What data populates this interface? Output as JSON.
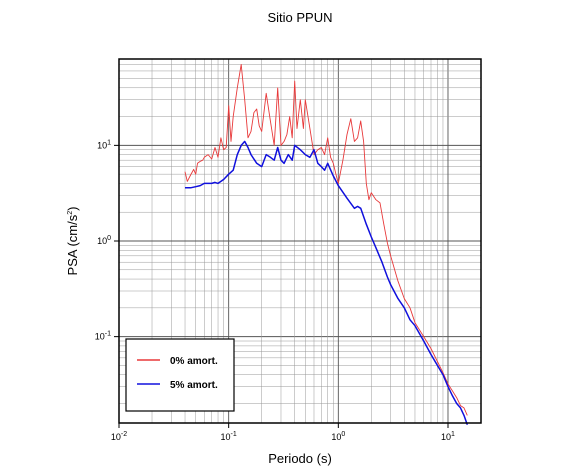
{
  "chart_data": {
    "type": "line",
    "title": "Sitio PPUN",
    "xlabel": "Periodo (s)",
    "ylabel_main": "PSA (cm/s",
    "ylabel_sup": "2",
    "ylabel_tail": ")",
    "x_scale": "log",
    "y_scale": "log",
    "xlim": [
      0.01,
      20
    ],
    "ylim": [
      0.0125,
      80
    ],
    "x_ticks": [
      {
        "base": "10",
        "exp": "-2",
        "value": 0.01
      },
      {
        "base": "10",
        "exp": "-1",
        "value": 0.1
      },
      {
        "base": "10",
        "exp": "0",
        "value": 1
      },
      {
        "base": "10",
        "exp": "1",
        "value": 10
      }
    ],
    "y_ticks": [
      {
        "base": "10",
        "exp": "-1",
        "value": 0.1
      },
      {
        "base": "10",
        "exp": "0",
        "value": 1
      },
      {
        "base": "10",
        "exp": "1",
        "value": 10
      }
    ],
    "grid": true,
    "legend_position": "bottom-left",
    "series": [
      {
        "name": "0% amort.",
        "color": "#e8393a",
        "x": [
          0.04,
          0.042,
          0.045,
          0.048,
          0.05,
          0.052,
          0.055,
          0.058,
          0.06,
          0.065,
          0.07,
          0.075,
          0.08,
          0.085,
          0.09,
          0.095,
          0.1,
          0.105,
          0.11,
          0.12,
          0.13,
          0.14,
          0.15,
          0.16,
          0.17,
          0.18,
          0.19,
          0.2,
          0.22,
          0.24,
          0.26,
          0.28,
          0.3,
          0.32,
          0.34,
          0.36,
          0.38,
          0.4,
          0.42,
          0.45,
          0.48,
          0.5,
          0.55,
          0.6,
          0.65,
          0.7,
          0.75,
          0.8,
          0.85,
          0.9,
          0.95,
          1.0,
          1.1,
          1.2,
          1.3,
          1.4,
          1.5,
          1.6,
          1.7,
          1.8,
          1.9,
          2.0,
          2.2,
          2.4,
          2.6,
          2.8,
          3.0,
          3.5,
          4.0,
          4.5,
          5.0,
          6.0,
          7.0,
          8.0,
          9.0,
          10.0,
          11.0,
          12.0,
          13.0,
          14.0,
          15.0
        ],
        "y": [
          5.3,
          4.2,
          4.9,
          5.6,
          5.0,
          6.5,
          6.8,
          7.0,
          7.5,
          8.0,
          7.2,
          9.5,
          7.5,
          12.0,
          9.0,
          9.5,
          26.0,
          11.0,
          20.0,
          40.0,
          70.0,
          30.0,
          12.0,
          14.0,
          22.0,
          24.0,
          16.0,
          14.0,
          35.0,
          18.0,
          10.0,
          40.0,
          10.0,
          11.0,
          13.0,
          20.0,
          12.0,
          47.0,
          15.0,
          30.0,
          15.0,
          30.0,
          15.0,
          8.0,
          9.0,
          9.5,
          8.0,
          12.0,
          7.5,
          6.5,
          5.0,
          4.0,
          7.0,
          13.0,
          19.0,
          11.0,
          12.0,
          18.0,
          11.0,
          4.0,
          2.7,
          3.2,
          2.7,
          2.5,
          1.5,
          0.95,
          0.7,
          0.38,
          0.25,
          0.2,
          0.14,
          0.1,
          0.075,
          0.055,
          0.042,
          0.032,
          0.027,
          0.023,
          0.019,
          0.018,
          0.015
        ]
      },
      {
        "name": "5% amort.",
        "color": "#1010dd",
        "x": [
          0.04,
          0.045,
          0.05,
          0.055,
          0.06,
          0.065,
          0.07,
          0.075,
          0.08,
          0.09,
          0.1,
          0.11,
          0.12,
          0.13,
          0.14,
          0.15,
          0.16,
          0.18,
          0.2,
          0.22,
          0.24,
          0.26,
          0.28,
          0.3,
          0.32,
          0.35,
          0.38,
          0.4,
          0.45,
          0.5,
          0.55,
          0.6,
          0.65,
          0.7,
          0.75,
          0.8,
          0.9,
          1.0,
          1.2,
          1.4,
          1.5,
          1.6,
          1.8,
          2.0,
          2.2,
          2.5,
          2.8,
          3.0,
          3.5,
          4.0,
          4.5,
          5.0,
          6.0,
          7.0,
          8.0,
          9.0,
          10.0,
          11.0,
          12.0,
          13.0,
          14.0,
          15.0
        ],
        "y": [
          3.6,
          3.6,
          3.7,
          3.8,
          4.0,
          4.0,
          4.0,
          4.1,
          4.0,
          4.4,
          5.0,
          5.5,
          8.0,
          10.0,
          11.0,
          9.5,
          8.0,
          6.5,
          6.0,
          8.0,
          7.5,
          7.0,
          9.5,
          7.0,
          6.5,
          8.0,
          7.0,
          10.0,
          9.0,
          8.0,
          7.5,
          9.0,
          6.5,
          6.0,
          5.5,
          6.5,
          4.8,
          3.8,
          2.8,
          2.2,
          2.3,
          2.2,
          1.5,
          1.1,
          0.85,
          0.6,
          0.42,
          0.35,
          0.25,
          0.2,
          0.15,
          0.13,
          0.09,
          0.065,
          0.05,
          0.04,
          0.03,
          0.024,
          0.02,
          0.018,
          0.015,
          0.012
        ]
      }
    ]
  }
}
